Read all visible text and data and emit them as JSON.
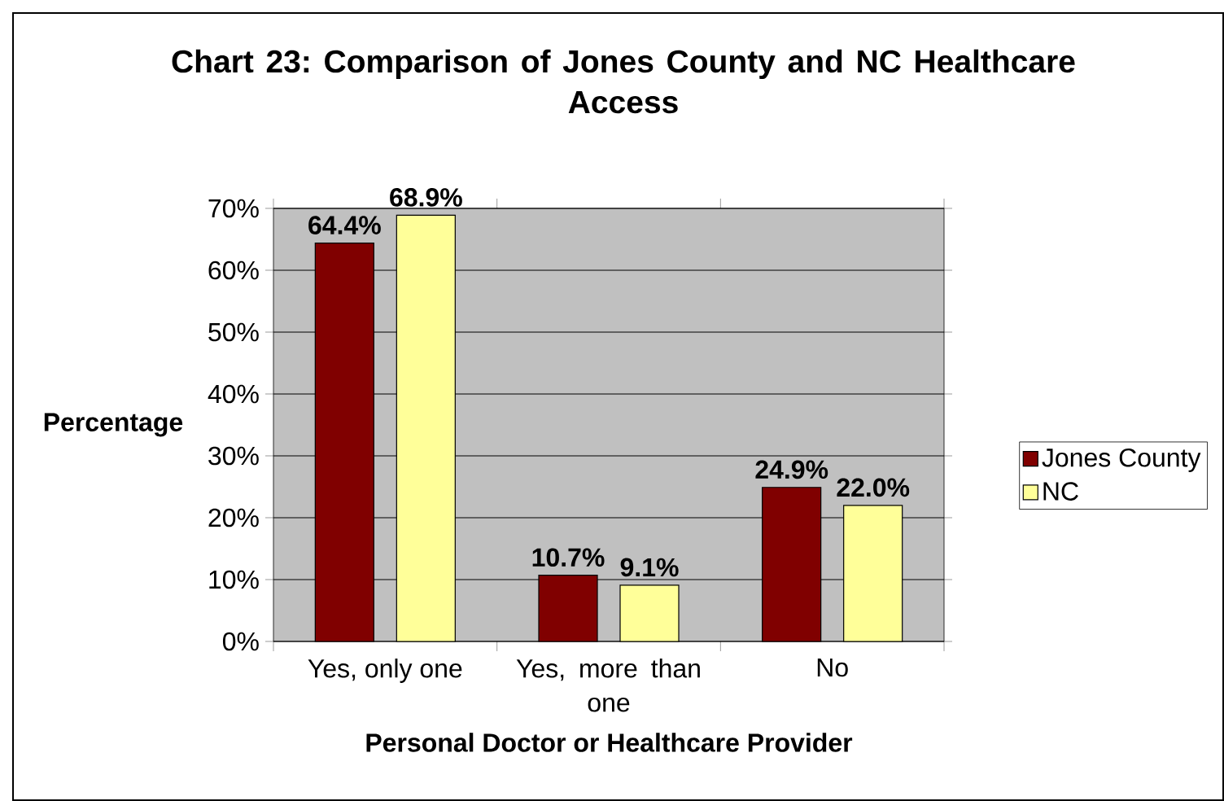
{
  "chart_data": {
    "type": "bar",
    "title": "Chart 23: Comparison of Jones County and NC Healthcare Access",
    "xlabel": "Personal Doctor or Healthcare Provider",
    "ylabel": "Percentage",
    "categories": [
      "Yes, only one",
      "Yes, more than one",
      "No"
    ],
    "series": [
      {
        "name": "Jones County",
        "color": "#800000",
        "values": [
          64.4,
          10.7,
          24.9
        ],
        "value_labels": [
          "64.4%",
          "10.7%",
          "24.9%"
        ]
      },
      {
        "name": "NC",
        "color": "#ffff99",
        "values": [
          68.9,
          9.1,
          22.0
        ],
        "value_labels": [
          "68.9%",
          "9.1%",
          "22.0%"
        ]
      }
    ],
    "ylim": [
      0,
      70
    ],
    "yticks": [
      {
        "value": 0,
        "label": "0%"
      },
      {
        "value": 10,
        "label": "10%"
      },
      {
        "value": 20,
        "label": "20%"
      },
      {
        "value": 30,
        "label": "30%"
      },
      {
        "value": 40,
        "label": "40%"
      },
      {
        "value": 50,
        "label": "50%"
      },
      {
        "value": 60,
        "label": "60%"
      },
      {
        "value": 70,
        "label": "70%"
      }
    ],
    "grid": "y",
    "legend": "right"
  }
}
